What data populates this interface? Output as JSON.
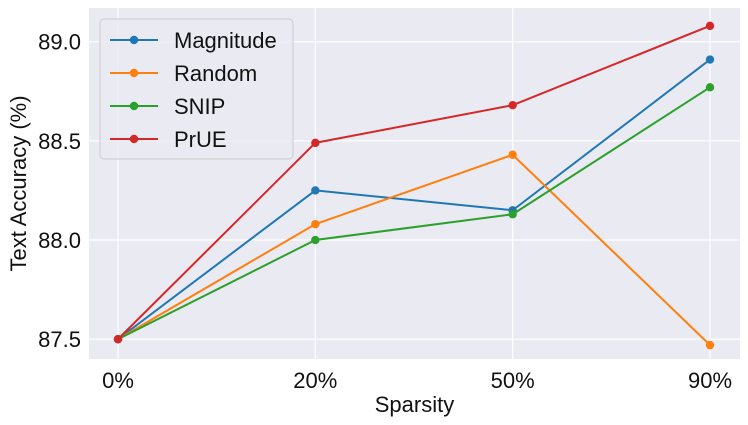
{
  "chart_data": {
    "type": "line",
    "title": "",
    "xlabel": "Sparsity",
    "ylabel": "Text Accuracy (%)",
    "categories": [
      "0%",
      "20%",
      "50%",
      "90%"
    ],
    "ylim": [
      87.4,
      89.17
    ],
    "yticks": [
      87.5,
      88.0,
      88.5,
      89.0
    ],
    "ytick_labels": [
      "87.5",
      "88.0",
      "88.5",
      "89.0"
    ],
    "grid": true,
    "legend_position": "top-left",
    "series": [
      {
        "name": "Magnitude",
        "color": "#1f77b4",
        "values": [
          87.5,
          88.25,
          88.15,
          88.91
        ]
      },
      {
        "name": "Random",
        "color": "#ff7f0e",
        "values": [
          87.5,
          88.08,
          88.43,
          87.47
        ]
      },
      {
        "name": "SNIP",
        "color": "#2ca02c",
        "values": [
          87.5,
          88.0,
          88.13,
          88.77
        ]
      },
      {
        "name": "PrUE",
        "color": "#d62728",
        "values": [
          87.5,
          88.49,
          88.68,
          89.08
        ]
      }
    ],
    "background": "#eaeaf2"
  }
}
